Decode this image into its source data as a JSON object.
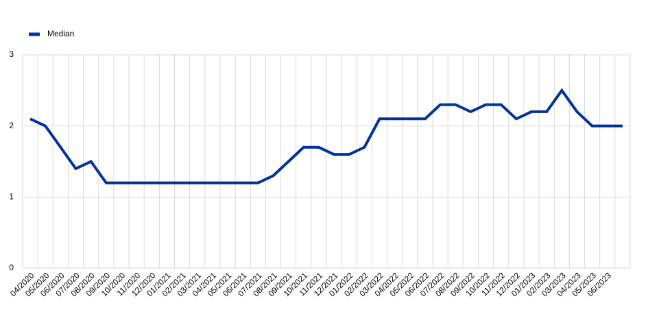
{
  "chart_data": {
    "type": "line",
    "categories": [
      "04/2020",
      "05/2020",
      "06/2020",
      "07/2020",
      "08/2020",
      "09/2020",
      "10/2020",
      "11/2020",
      "12/2020",
      "01/2021",
      "02/2021",
      "03/2021",
      "04/2021",
      "05/2021",
      "06/2021",
      "07/2021",
      "08/2021",
      "09/2021",
      "10/2021",
      "11/2021",
      "12/2021",
      "01/2022",
      "02/2022",
      "03/2022",
      "04/2022",
      "05/2022",
      "06/2022",
      "07/2022",
      "08/2022",
      "09/2022",
      "10/2022",
      "11/2022",
      "12/2022",
      "01/2023",
      "02/2023",
      "03/2023",
      "04/2023",
      "05/2023",
      "06/2023",
      null
    ],
    "series": [
      {
        "name": "Median",
        "color": "#003299",
        "values": [
          2.1,
          2.0,
          1.7,
          1.4,
          1.5,
          1.2,
          1.2,
          1.2,
          1.2,
          1.2,
          1.2,
          1.2,
          1.2,
          1.2,
          1.2,
          1.2,
          1.3,
          1.5,
          1.7,
          1.7,
          1.6,
          1.6,
          1.7,
          2.1,
          2.1,
          2.1,
          2.1,
          2.3,
          2.3,
          2.2,
          2.3,
          2.3,
          2.1,
          2.2,
          2.2,
          2.5,
          2.2,
          2.0,
          2.0,
          2.0
        ]
      }
    ],
    "ylim": [
      0,
      3
    ],
    "yticks": [
      0,
      1,
      2,
      3
    ],
    "grid": true,
    "legend": "top-left"
  }
}
